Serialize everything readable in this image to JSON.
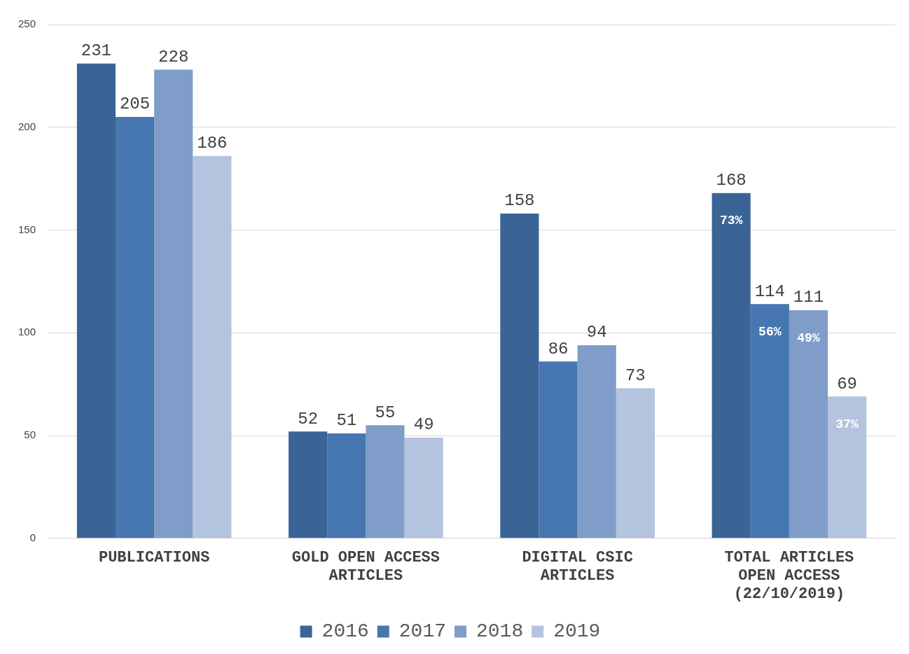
{
  "chart_data": {
    "type": "bar",
    "categories": [
      "PUBLICATIONS",
      "GOLD OPEN ACCESS ARTICLES",
      "DIGITAL CSIC ARTICLES",
      "TOTAL ARTICLES OPEN ACCESS (22/10/2019)"
    ],
    "series": [
      {
        "name": "2016",
        "color": "#3a6496",
        "values": [
          231,
          52,
          158,
          168
        ]
      },
      {
        "name": "2017",
        "color": "#4677b0",
        "values": [
          205,
          51,
          86,
          114
        ]
      },
      {
        "name": "2018",
        "color": "#7f9dc8",
        "values": [
          228,
          55,
          94,
          111
        ]
      },
      {
        "name": "2019",
        "color": "#b4c3de",
        "values": [
          186,
          49,
          73,
          69
        ]
      }
    ],
    "ylim": [
      0,
      250
    ],
    "yticks": [
      0,
      50,
      100,
      150,
      200,
      250
    ],
    "grid": "y",
    "legend": "bottom",
    "data_labels": true,
    "annotations": [
      "73%",
      "56%",
      "49%",
      "37%"
    ]
  }
}
